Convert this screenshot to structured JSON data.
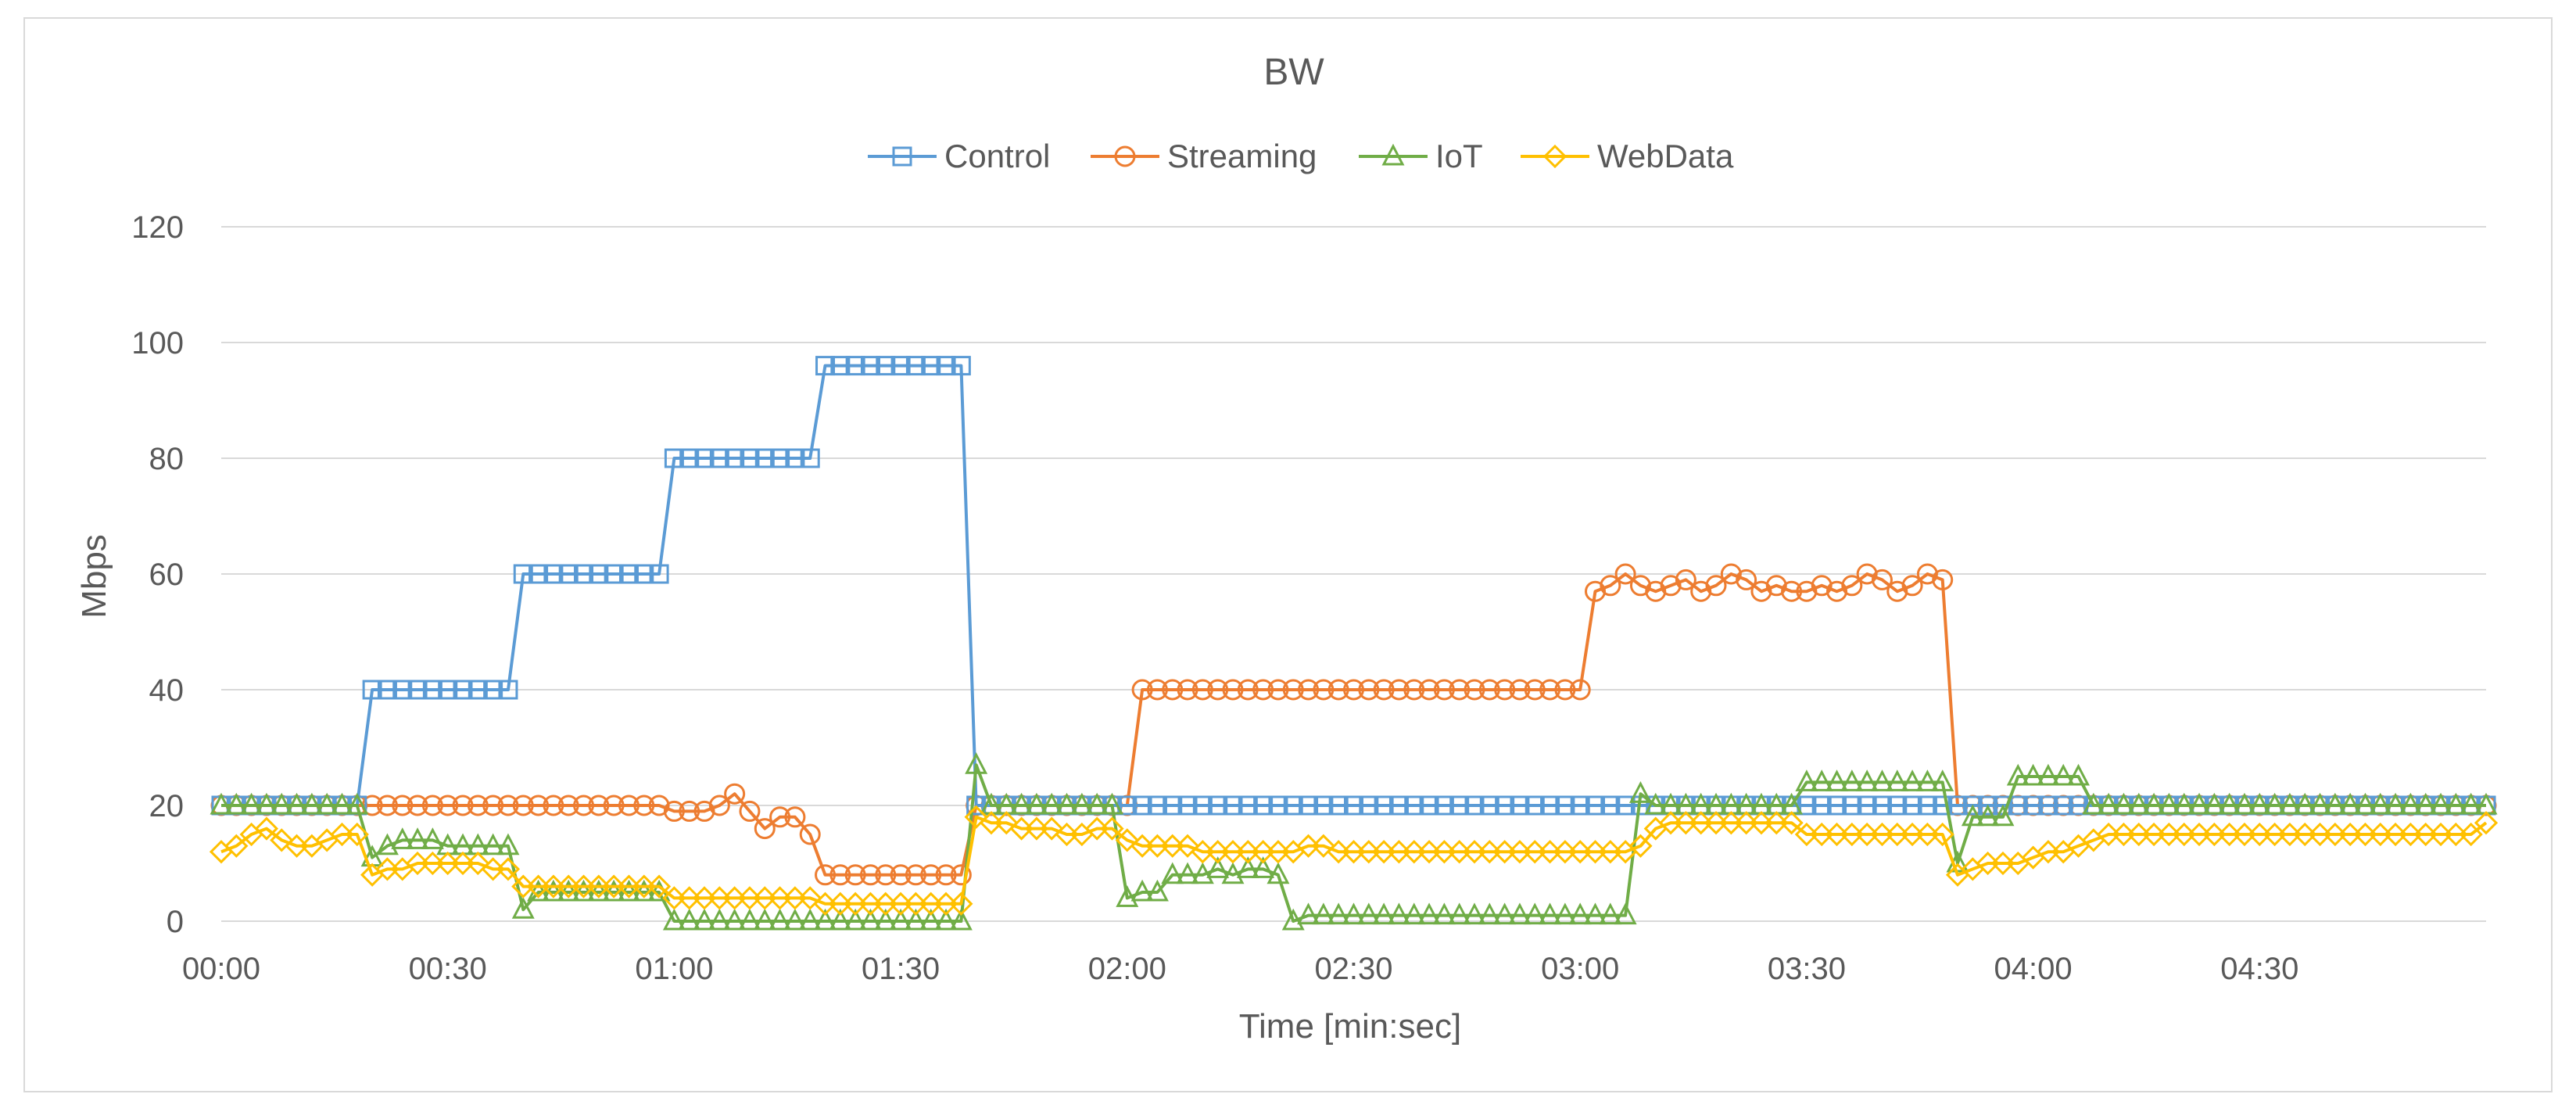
{
  "chart_data": {
    "type": "line",
    "title": "BW",
    "xlabel": "Time [min:sec]",
    "ylabel": "Mbps",
    "ylim": [
      0,
      120
    ],
    "yticks": [
      "0",
      "20",
      "40",
      "60",
      "80",
      "100",
      "120"
    ],
    "xlim": [
      0,
      300
    ],
    "xticks": [
      {
        "label": "00:00",
        "t": 0
      },
      {
        "label": "00:30",
        "t": 30
      },
      {
        "label": "01:00",
        "t": 60
      },
      {
        "label": "01:30",
        "t": 90
      },
      {
        "label": "02:00",
        "t": 120
      },
      {
        "label": "02:30",
        "t": 150
      },
      {
        "label": "03:00",
        "t": 180
      },
      {
        "label": "03:30",
        "t": 210
      },
      {
        "label": "04:00",
        "t": 240
      },
      {
        "label": "04:30",
        "t": 270
      }
    ],
    "grid": "horizontal",
    "legend": "top",
    "sample_times": [
      0,
      2,
      4,
      6,
      8,
      10,
      12,
      14,
      16,
      18,
      20,
      22,
      24,
      26,
      28,
      30,
      32,
      34,
      36,
      38,
      40,
      42,
      44,
      46,
      48,
      50,
      52,
      54,
      56,
      58,
      60,
      62,
      64,
      66,
      68,
      70,
      72,
      74,
      76,
      78,
      80,
      82,
      84,
      86,
      88,
      90,
      92,
      94,
      96,
      98,
      100,
      102,
      104,
      106,
      108,
      110,
      112,
      114,
      116,
      118,
      120,
      122,
      124,
      126,
      128,
      130,
      132,
      134,
      136,
      138,
      140,
      142,
      144,
      146,
      148,
      150,
      152,
      154,
      156,
      158,
      160,
      162,
      164,
      166,
      168,
      170,
      172,
      174,
      176,
      178,
      180,
      182,
      184,
      186,
      188,
      190,
      192,
      194,
      196,
      198,
      200,
      202,
      204,
      206,
      208,
      210,
      212,
      214,
      216,
      218,
      220,
      222,
      224,
      226,
      228,
      230,
      232,
      234,
      236,
      238,
      240,
      242,
      244,
      246,
      248,
      250,
      252,
      254,
      256,
      258,
      260,
      262,
      264,
      266,
      268,
      270,
      272,
      274,
      276,
      278,
      280,
      282,
      284,
      286,
      288,
      290,
      292,
      294,
      296,
      298,
      300
    ],
    "series": [
      {
        "name": "Control",
        "color": "#5B9BD5",
        "marker": "square",
        "values": [
          20,
          20,
          20,
          20,
          20,
          20,
          20,
          20,
          20,
          20,
          40,
          40,
          40,
          40,
          40,
          40,
          40,
          40,
          40,
          40,
          60,
          60,
          60,
          60,
          60,
          60,
          60,
          60,
          60,
          60,
          80,
          80,
          80,
          80,
          80,
          80,
          80,
          80,
          80,
          80,
          96,
          96,
          96,
          96,
          96,
          96,
          96,
          96,
          96,
          96,
          20,
          20,
          20,
          20,
          20,
          20,
          20,
          20,
          20,
          20,
          20,
          20,
          20,
          20,
          20,
          20,
          20,
          20,
          20,
          20,
          20,
          20,
          20,
          20,
          20,
          20,
          20,
          20,
          20,
          20,
          20,
          20,
          20,
          20,
          20,
          20,
          20,
          20,
          20,
          20,
          20,
          20,
          20,
          20,
          20,
          20,
          20,
          20,
          20,
          20,
          20,
          20,
          20,
          20,
          20,
          20,
          20,
          20,
          20,
          20,
          20,
          20,
          20,
          20,
          20,
          20,
          20,
          20,
          20,
          20,
          20,
          20,
          20,
          20,
          20,
          20,
          20,
          20,
          20,
          20,
          20,
          20,
          20,
          20,
          20,
          20,
          20,
          20,
          20,
          20,
          20,
          20,
          20,
          20,
          20,
          20,
          20,
          20,
          20,
          20,
          20
        ]
      },
      {
        "name": "Streaming",
        "color": "#ED7D31",
        "marker": "circle",
        "values": [
          20,
          20,
          20,
          20,
          20,
          20,
          20,
          20,
          20,
          20,
          20,
          20,
          20,
          20,
          20,
          20,
          20,
          20,
          20,
          20,
          20,
          20,
          20,
          20,
          20,
          20,
          20,
          20,
          20,
          20,
          19,
          19,
          19,
          20,
          22,
          19,
          16,
          18,
          18,
          15,
          8,
          8,
          8,
          8,
          8,
          8,
          8,
          8,
          8,
          8,
          20,
          20,
          20,
          20,
          20,
          20,
          20,
          20,
          20,
          20,
          20,
          40,
          40,
          40,
          40,
          40,
          40,
          40,
          40,
          40,
          40,
          40,
          40,
          40,
          40,
          40,
          40,
          40,
          40,
          40,
          40,
          40,
          40,
          40,
          40,
          40,
          40,
          40,
          40,
          40,
          40,
          57,
          58,
          60,
          58,
          57,
          58,
          59,
          57,
          58,
          60,
          59,
          57,
          58,
          57,
          57,
          58,
          57,
          58,
          60,
          59,
          57,
          58,
          60,
          59,
          20,
          20,
          20,
          20,
          20,
          20,
          20,
          20,
          20,
          20,
          20,
          20,
          20,
          20,
          20,
          20,
          20,
          20,
          20,
          20,
          20,
          20,
          20,
          20,
          20,
          20,
          20,
          20,
          20,
          20,
          20,
          20,
          20,
          20,
          20,
          20
        ]
      },
      {
        "name": "IoT",
        "color": "#70AD47",
        "marker": "triangle",
        "values": [
          20,
          20,
          20,
          20,
          20,
          20,
          20,
          20,
          20,
          20,
          11,
          13,
          14,
          14,
          14,
          13,
          13,
          13,
          13,
          13,
          2,
          5,
          5,
          5,
          5,
          5,
          5,
          5,
          5,
          5,
          0,
          0,
          0,
          0,
          0,
          0,
          0,
          0,
          0,
          0,
          0,
          0,
          0,
          0,
          0,
          0,
          0,
          0,
          0,
          0,
          27,
          20,
          20,
          20,
          20,
          20,
          20,
          20,
          20,
          20,
          4,
          5,
          5,
          8,
          8,
          8,
          9,
          8,
          9,
          9,
          8,
          0,
          1,
          1,
          1,
          1,
          1,
          1,
          1,
          1,
          1,
          1,
          1,
          1,
          1,
          1,
          1,
          1,
          1,
          1,
          1,
          1,
          1,
          1,
          22,
          20,
          20,
          20,
          20,
          20,
          20,
          20,
          20,
          20,
          20,
          24,
          24,
          24,
          24,
          24,
          24,
          24,
          24,
          24,
          24,
          10,
          18,
          18,
          18,
          25,
          25,
          25,
          25,
          25,
          20,
          20,
          20,
          20,
          20,
          20,
          20,
          20,
          20,
          20,
          20,
          20,
          20,
          20,
          20,
          20,
          20,
          20,
          20,
          20,
          20,
          20,
          20,
          20,
          20,
          20,
          20
        ]
      },
      {
        "name": "WebData",
        "color": "#FFC000",
        "marker": "diamond",
        "values": [
          12,
          13,
          15,
          16,
          14,
          13,
          13,
          14,
          15,
          15,
          8,
          9,
          9,
          10,
          10,
          10,
          10,
          10,
          9,
          9,
          6,
          6,
          6,
          6,
          6,
          6,
          6,
          6,
          6,
          6,
          4,
          4,
          4,
          4,
          4,
          4,
          4,
          4,
          4,
          4,
          3,
          3,
          3,
          3,
          3,
          3,
          3,
          3,
          3,
          3,
          18,
          17,
          17,
          16,
          16,
          16,
          15,
          15,
          16,
          16,
          14,
          13,
          13,
          13,
          13,
          12,
          12,
          12,
          12,
          12,
          12,
          12,
          13,
          13,
          12,
          12,
          12,
          12,
          12,
          12,
          12,
          12,
          12,
          12,
          12,
          12,
          12,
          12,
          12,
          12,
          12,
          12,
          12,
          12,
          13,
          16,
          17,
          17,
          17,
          17,
          17,
          17,
          17,
          17,
          17,
          15,
          15,
          15,
          15,
          15,
          15,
          15,
          15,
          15,
          15,
          8,
          9,
          10,
          10,
          10,
          11,
          12,
          12,
          13,
          14,
          15,
          15,
          15,
          15,
          15,
          15,
          15,
          15,
          15,
          15,
          15,
          15,
          15,
          15,
          15,
          15,
          15,
          15,
          15,
          15,
          15,
          15,
          15,
          15,
          15,
          17
        ]
      }
    ]
  }
}
